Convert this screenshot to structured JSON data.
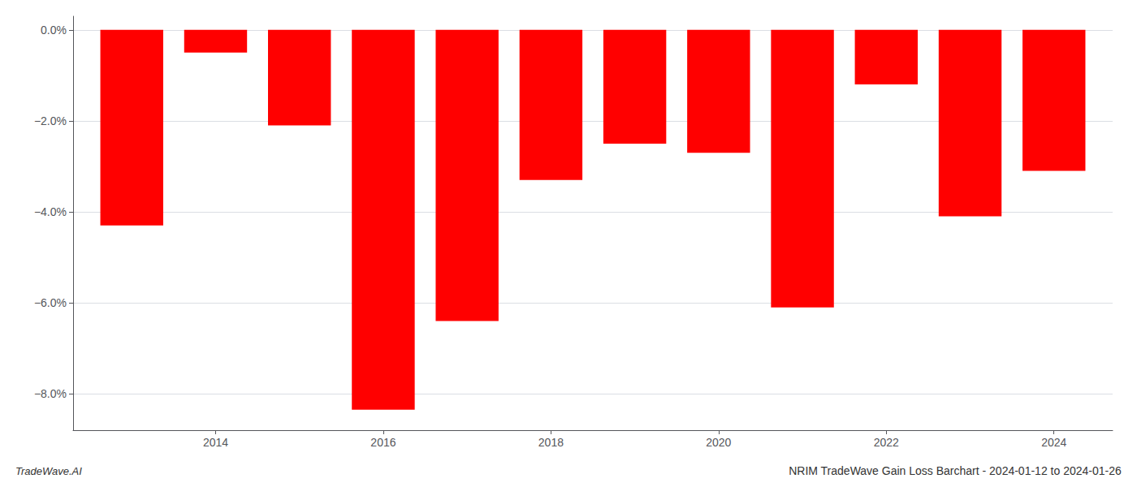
{
  "chart_data": {
    "type": "bar",
    "title": "NRIM TradeWave Gain Loss Barchart - 2024-01-12 to 2024-01-26",
    "annotations": [
      {
        "text": "TradeWave.AI"
      }
    ],
    "x": [
      2013,
      2014,
      2015,
      2016,
      2017,
      2018,
      2019,
      2020,
      2021,
      2022,
      2023,
      2024
    ],
    "values": [
      -4.3,
      -0.5,
      -2.1,
      -8.35,
      -6.4,
      -3.3,
      -2.5,
      -2.7,
      -6.1,
      -1.2,
      -4.1,
      -3.1
    ],
    "color": "#ff0000",
    "xlim": [
      2012.3,
      2024.7
    ],
    "xticks": [
      2014,
      2016,
      2018,
      2020,
      2022,
      2024
    ],
    "ylim": [
      -8.8,
      0.3
    ],
    "yticks": [
      {
        "value": 0.0,
        "label": "0.0%"
      },
      {
        "value": -2.0,
        "label": "−2.0%"
      },
      {
        "value": -4.0,
        "label": "−4.0%"
      },
      {
        "value": -6.0,
        "label": "−6.0%"
      },
      {
        "value": -8.0,
        "label": "−8.0%"
      }
    ],
    "grid": true
  }
}
